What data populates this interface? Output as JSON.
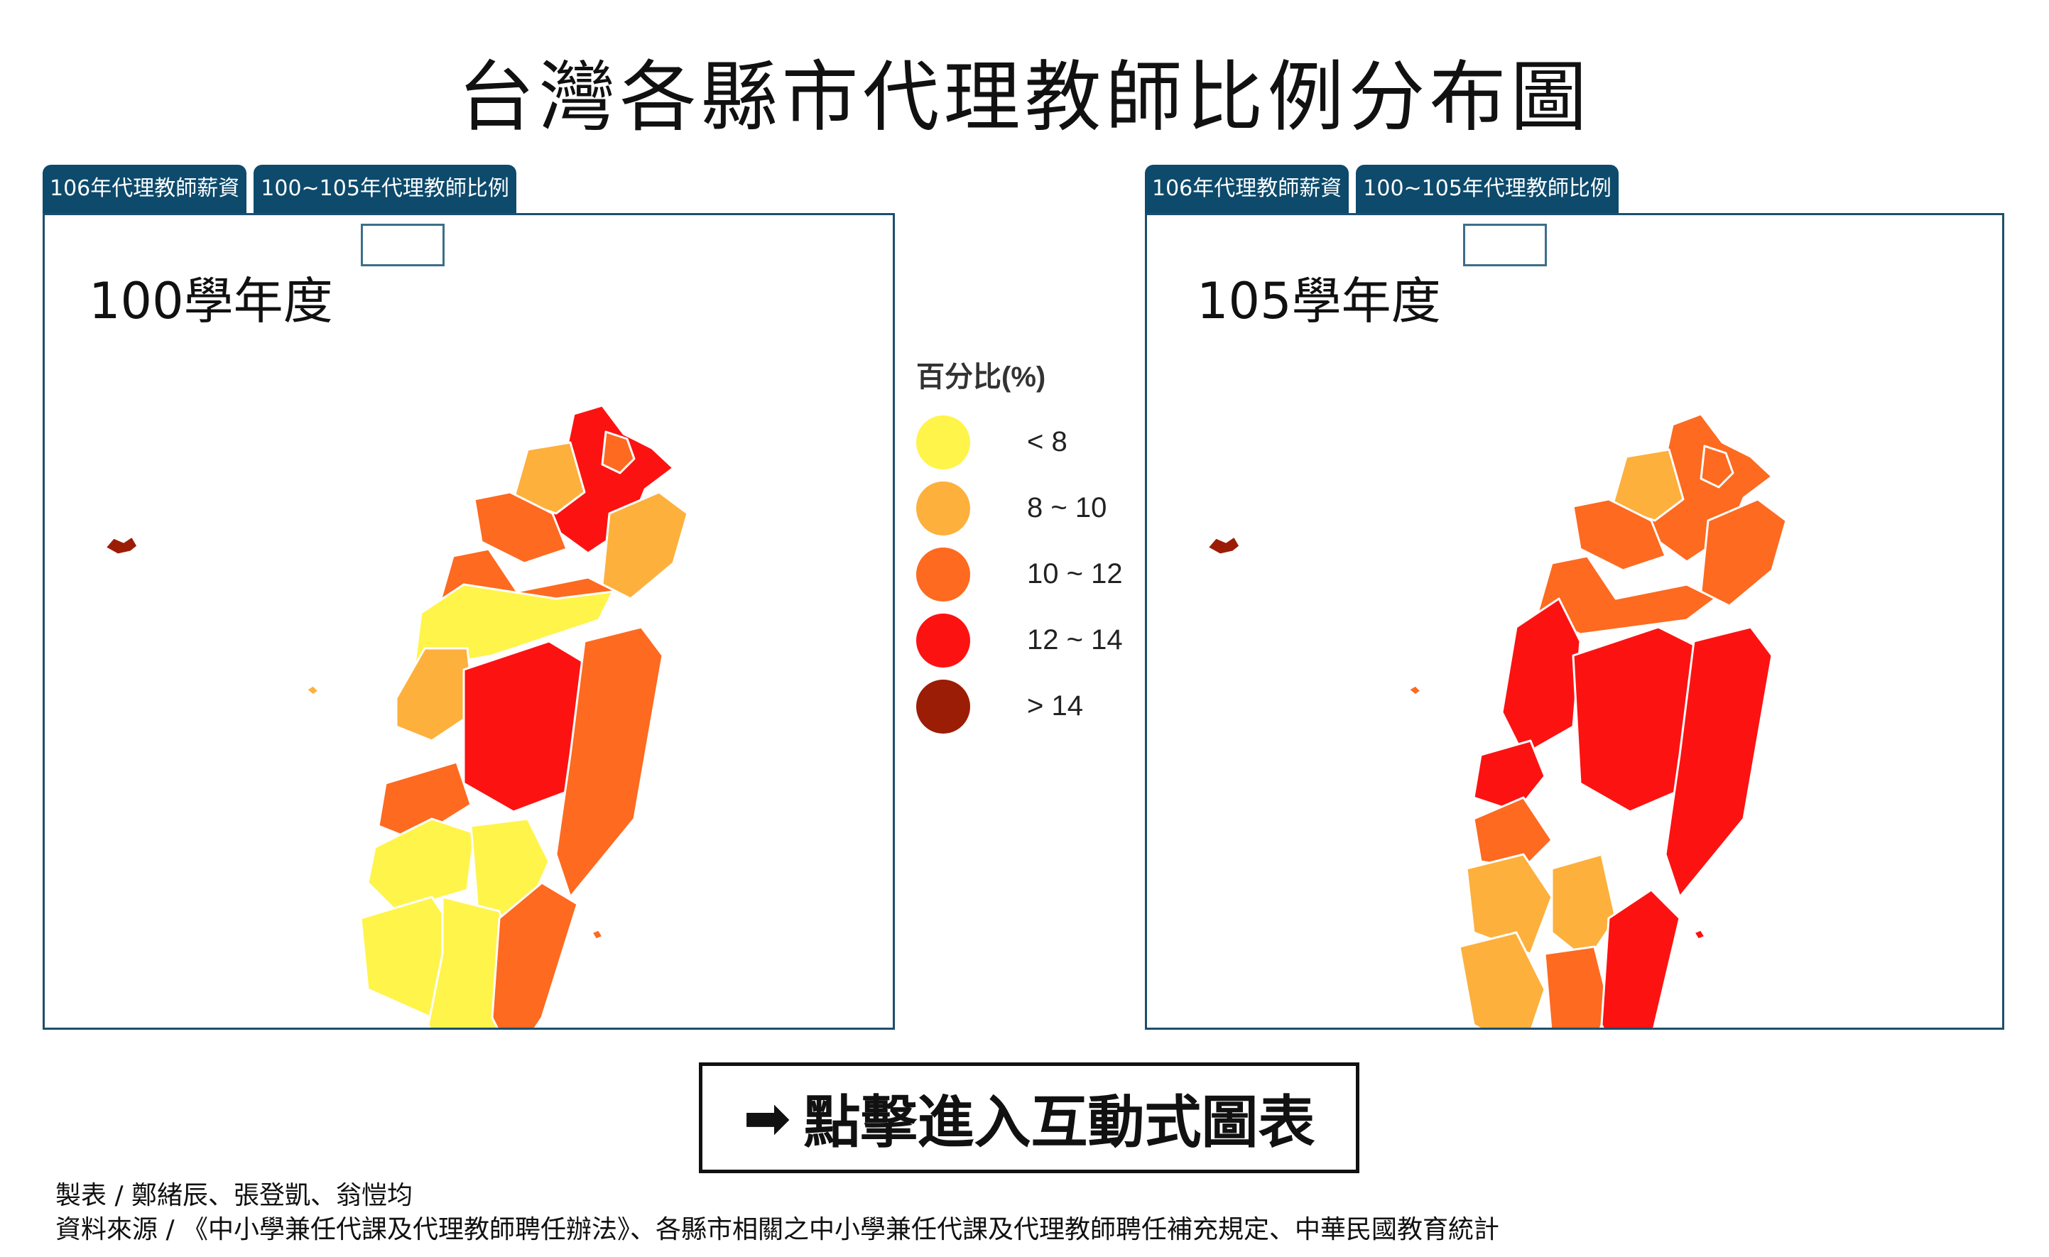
{
  "title": "台灣各縣市代理教師比例分布圖",
  "tabs": [
    {
      "label": "106年代理教師薪資"
    },
    {
      "label": "100~105年代理教師比例"
    }
  ],
  "panels": [
    {
      "label": "100學年度"
    },
    {
      "label": "105學年度"
    }
  ],
  "legend": {
    "title": "百分比(%)",
    "items": [
      {
        "label": "< 8",
        "color": "#fff44a"
      },
      {
        "label": "8 ~ 10",
        "color": "#fdb03c"
      },
      {
        "label": "10 ~ 12",
        "color": "#fd6a20"
      },
      {
        "label": "12 ~ 14",
        "color": "#fd1212"
      },
      {
        "label": "> 14",
        "color": "#9c1d05"
      }
    ]
  },
  "cta": {
    "label": "點擊進入互動式圖表"
  },
  "credits": {
    "line1": "製表 / 鄭緒辰、張登凱、翁愷均",
    "line2": "資料來源 / 《中小學兼任代課及代理教師聘任辦法》、各縣市相關之中小學兼任代課及代理教師聘任補充規定、中華民國教育統計"
  }
}
